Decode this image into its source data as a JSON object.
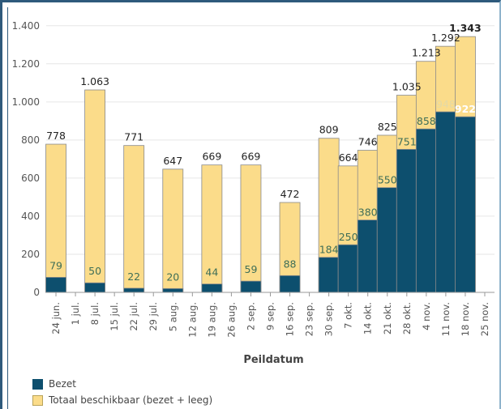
{
  "chart_data": {
    "type": "bar",
    "stacked_overlay": true,
    "xlabel": "Peildatum",
    "ylabel": "",
    "ylim": [
      0,
      1450
    ],
    "y_ticks": [
      0,
      200,
      400,
      600,
      800,
      1000,
      1200,
      1400
    ],
    "y_tick_labels": [
      "0",
      "200",
      "400",
      "600",
      "800",
      "1.000",
      "1.200",
      "1.400"
    ],
    "categories": [
      "24 jun.",
      "1 jul.",
      "8 jul.",
      "15 jul.",
      "22 jul.",
      "29 jul.",
      "5 aug.",
      "12 aug.",
      "19 aug.",
      "26 aug.",
      "2 sep.",
      "9 sep.",
      "16 sep.",
      "23 sep.",
      "30 sep.",
      "7 okt.",
      "14 okt.",
      "21 okt.",
      "28 okt.",
      "4 nov.",
      "11 nov.",
      "18 nov.",
      "25 nov."
    ],
    "grid": true,
    "legend_position": "bottom-left",
    "series": [
      {
        "name": "Bezet",
        "color": "#0d4f6e",
        "values": [
          79,
          null,
          50,
          null,
          22,
          null,
          20,
          null,
          44,
          null,
          59,
          null,
          88,
          null,
          184,
          250,
          380,
          550,
          751,
          858,
          948,
          922,
          null
        ],
        "labels": [
          "79",
          "",
          "50",
          "",
          "22",
          "",
          "20",
          "",
          "44",
          "",
          "59",
          "",
          "88",
          "",
          "184",
          "250",
          "380",
          "550",
          "751",
          "858",
          "948",
          "922",
          ""
        ]
      },
      {
        "name": "Totaal beschikbaar (bezet + leeg)",
        "color": "#fbdc8a",
        "values": [
          778,
          null,
          1063,
          null,
          771,
          null,
          647,
          null,
          669,
          null,
          669,
          null,
          472,
          null,
          809,
          664,
          746,
          825,
          1035,
          1213,
          1292,
          1343,
          null
        ],
        "labels": [
          "778",
          "",
          "1.063",
          "",
          "771",
          "",
          "647",
          "",
          "669",
          "",
          "669",
          "",
          "472",
          "",
          "809",
          "664",
          "746",
          "825",
          "1.035",
          "1.213",
          "1.292",
          "1.343",
          ""
        ]
      }
    ]
  }
}
